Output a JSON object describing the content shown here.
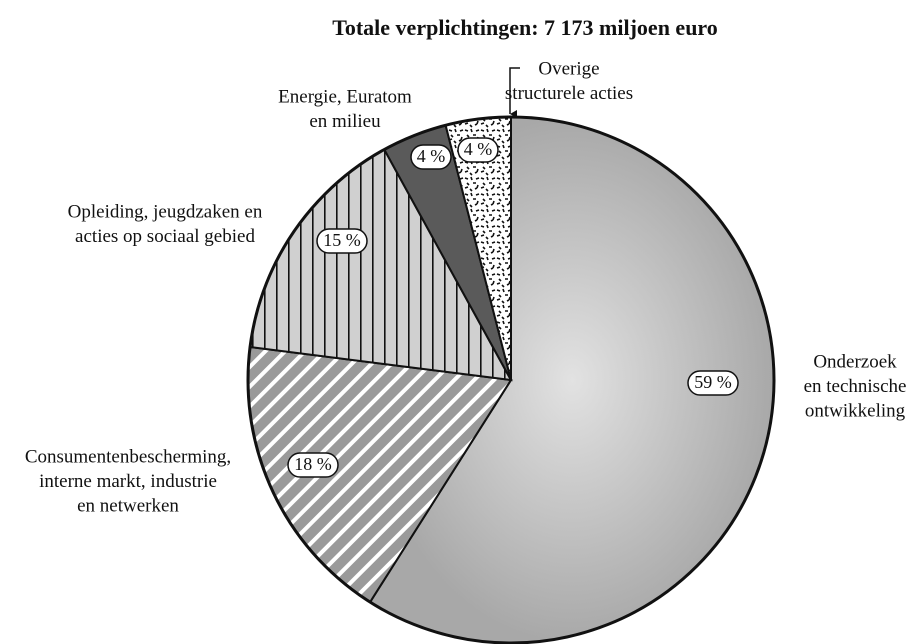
{
  "chart_data": {
    "type": "pie",
    "title": "Totale verplichtingen: 7 173 miljoen euro",
    "categories": [
      [
        "Onderzoek",
        "en technische",
        "ontwikkeling"
      ],
      [
        "Consumentenbescherming,",
        "interne markt, industrie",
        "en netwerken"
      ],
      [
        "Opleiding, jeugdzaken en",
        "acties op sociaal gebied"
      ],
      [
        "Energie, Euratom",
        "en milieu"
      ],
      [
        "Overige",
        "structurele acties"
      ]
    ],
    "values": [
      59,
      18,
      15,
      4,
      4
    ],
    "value_labels": [
      "59 %",
      "18 %",
      "15 %",
      "4 %",
      "4 %"
    ],
    "colors": [
      "#b8b8b8",
      "#9a9a9a",
      "#d0d0d0",
      "#5a5a5a",
      "#ffffff"
    ]
  }
}
